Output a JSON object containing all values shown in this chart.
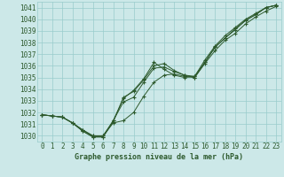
{
  "title": "Graphe pression niveau de la mer (hPa)",
  "bg_color": "#cce8e8",
  "grid_color": "#99cccc",
  "line_color": "#2d5a2d",
  "x_labels": [
    "0",
    "1",
    "2",
    "3",
    "4",
    "5",
    "6",
    "7",
    "8",
    "9",
    "10",
    "11",
    "12",
    "13",
    "14",
    "15",
    "16",
    "17",
    "18",
    "19",
    "20",
    "21",
    "22",
    "23"
  ],
  "ylim": [
    1029.5,
    1041.5
  ],
  "xlim": [
    -0.5,
    23.5
  ],
  "yticks": [
    1030,
    1031,
    1032,
    1033,
    1034,
    1035,
    1036,
    1037,
    1038,
    1039,
    1040,
    1041
  ],
  "series": [
    [
      1031.8,
      1031.7,
      1031.6,
      1031.1,
      1030.5,
      1030.0,
      1030.0,
      1031.1,
      1031.3,
      1032.0,
      1033.4,
      1034.6,
      1035.2,
      1035.3,
      1035.1,
      1035.0,
      1036.3,
      1037.6,
      1038.4,
      1039.2,
      1039.9,
      1040.4,
      1041.0,
      1041.2
    ],
    [
      1031.8,
      1031.7,
      1031.6,
      1031.1,
      1030.5,
      1030.0,
      1030.0,
      1031.3,
      1032.9,
      1033.3,
      1034.6,
      1035.8,
      1035.9,
      1035.5,
      1035.2,
      1035.0,
      1036.2,
      1037.3,
      1038.2,
      1038.8,
      1039.6,
      1040.2,
      1040.7,
      1041.1
    ],
    [
      1031.8,
      1031.7,
      1031.6,
      1031.1,
      1030.4,
      1029.9,
      1029.9,
      1031.3,
      1033.2,
      1033.9,
      1034.9,
      1036.3,
      1035.7,
      1035.2,
      1035.0,
      1035.1,
      1036.5,
      1037.7,
      1038.6,
      1039.3,
      1040.0,
      1040.5,
      1041.0,
      1041.2
    ],
    [
      1031.8,
      1031.7,
      1031.6,
      1031.1,
      1030.4,
      1029.9,
      1029.9,
      1031.2,
      1033.3,
      1033.8,
      1034.8,
      1036.0,
      1036.2,
      1035.6,
      1035.2,
      1035.1,
      1036.3,
      1037.6,
      1038.4,
      1039.1,
      1039.9,
      1040.4,
      1041.0,
      1041.2
    ]
  ],
  "title_fontsize": 6.0,
  "tick_fontsize": 5.5
}
